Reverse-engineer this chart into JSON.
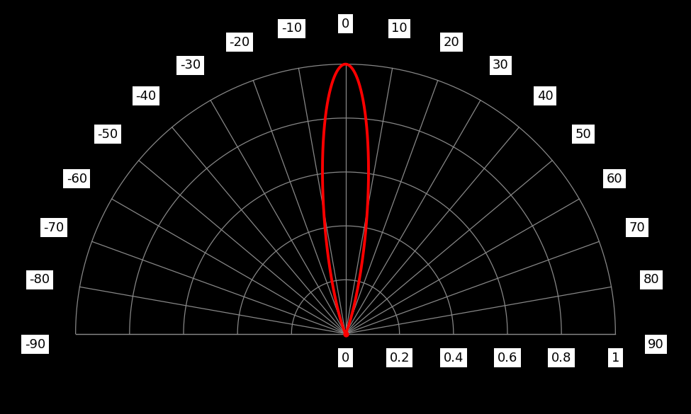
{
  "background_color": "#000000",
  "grid_color": "#888888",
  "pattern_color": "#ff0000",
  "angle_labels": [
    -90,
    -80,
    -70,
    -60,
    -50,
    -40,
    -30,
    -20,
    -10,
    0,
    10,
    20,
    30,
    40,
    50,
    60,
    70,
    80,
    90
  ],
  "radial_labels": [
    "0",
    "0.2",
    "0.4",
    "0.6",
    "0.8",
    "1"
  ],
  "radial_label_vals": [
    0.0,
    0.2,
    0.4,
    0.6,
    0.8,
    1.0
  ],
  "radial_rings": [
    0.2,
    0.4,
    0.6,
    0.8,
    1.0
  ],
  "label_fontsize": 13,
  "label_box_color": "#ffffff",
  "label_text_color": "#000000",
  "pattern_n": 50,
  "grid_linewidth": 0.9
}
